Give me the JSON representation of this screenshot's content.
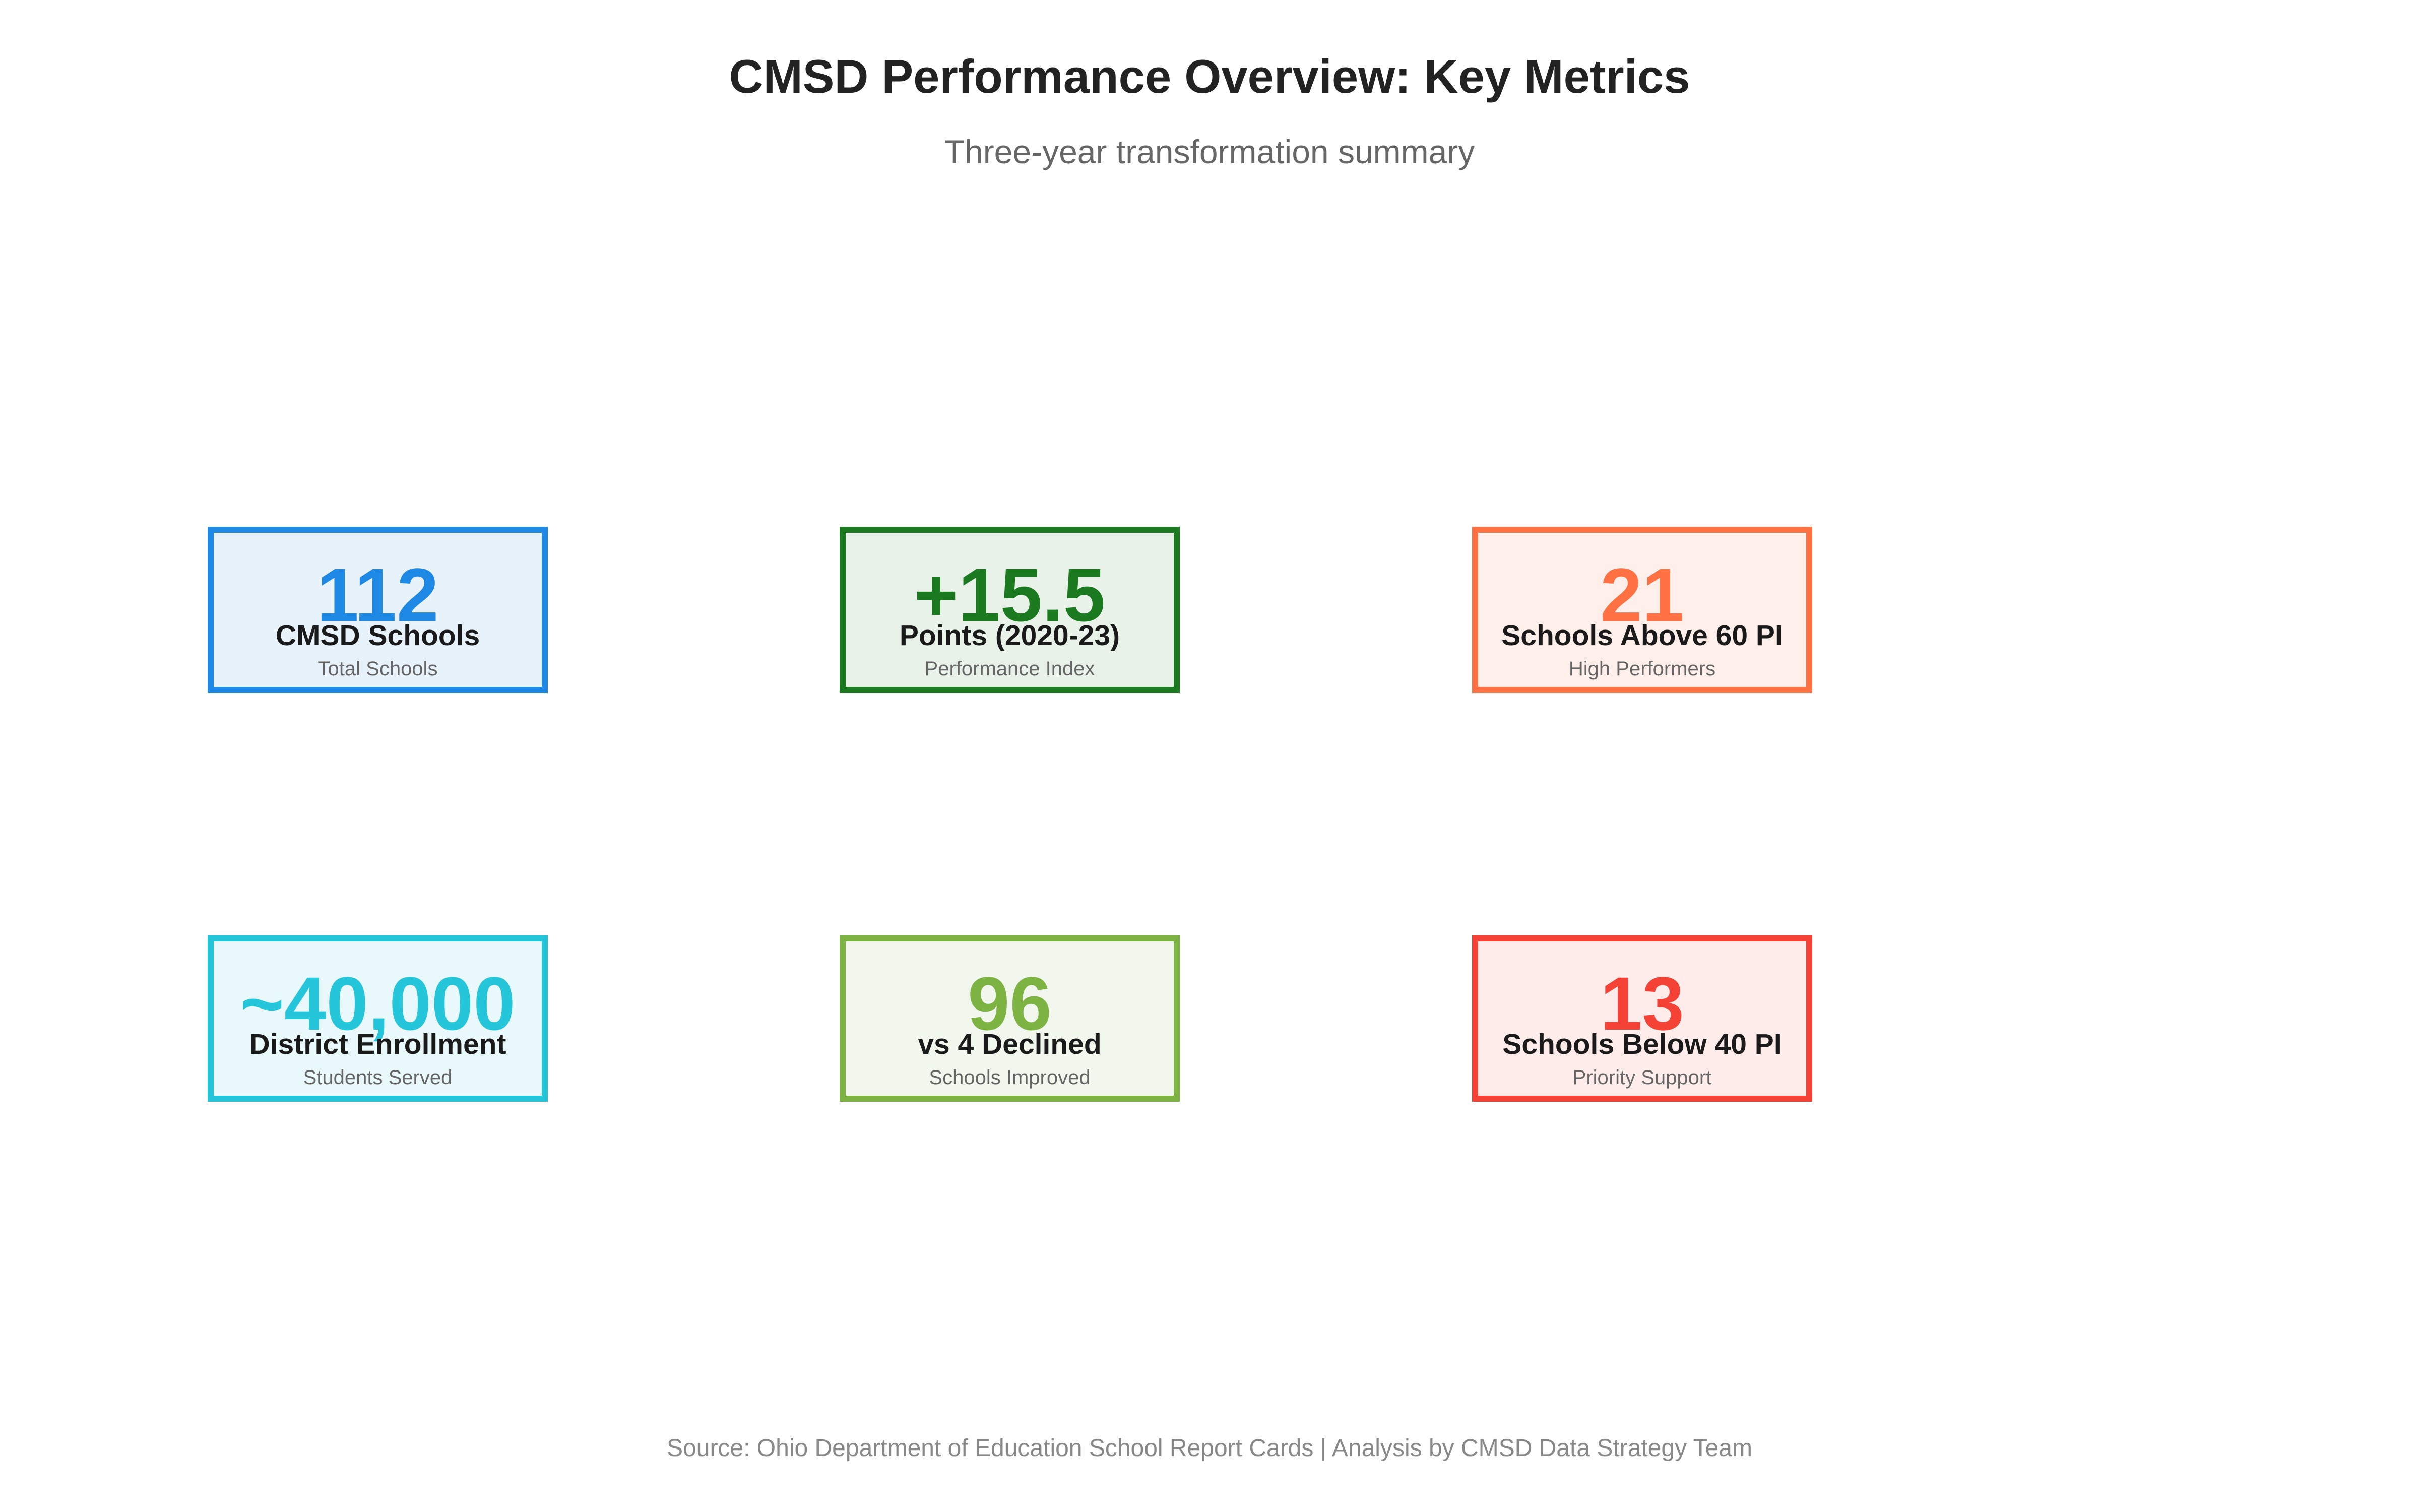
{
  "header": {
    "title": "CMSD Performance Overview: Key Metrics",
    "subtitle": "Three-year transformation summary"
  },
  "cards": [
    {
      "value": "112",
      "label": "CMSD Schools",
      "sublabel": "Total Schools",
      "accent": "#1E88E5",
      "background": "#E8F2FB"
    },
    {
      "value": "+15.5",
      "label": "Points (2020-23)",
      "sublabel": "Performance Index",
      "accent": "#1B7A1F",
      "background": "#E9F2E9"
    },
    {
      "value": "21",
      "label": "Schools Above 60 PI",
      "sublabel": "High Performers",
      "accent": "#FF7043",
      "background": "#FFEFEA"
    },
    {
      "value": "~40,000",
      "label": "District Enrollment",
      "sublabel": "Students Served",
      "accent": "#26C6DA",
      "background": "#E9F8FA"
    },
    {
      "value": "96",
      "label": "vs 4 Declined",
      "sublabel": "Schools Improved",
      "accent": "#7CB342",
      "background": "#F1F7EC"
    },
    {
      "value": "13",
      "label": "Schools Below 40 PI",
      "sublabel": "Priority Support",
      "accent": "#F44336",
      "background": "#FEECEB"
    }
  ],
  "footer": {
    "source": "Source: Ohio Department of Education School Report Cards | Analysis by CMSD Data Strategy Team"
  }
}
